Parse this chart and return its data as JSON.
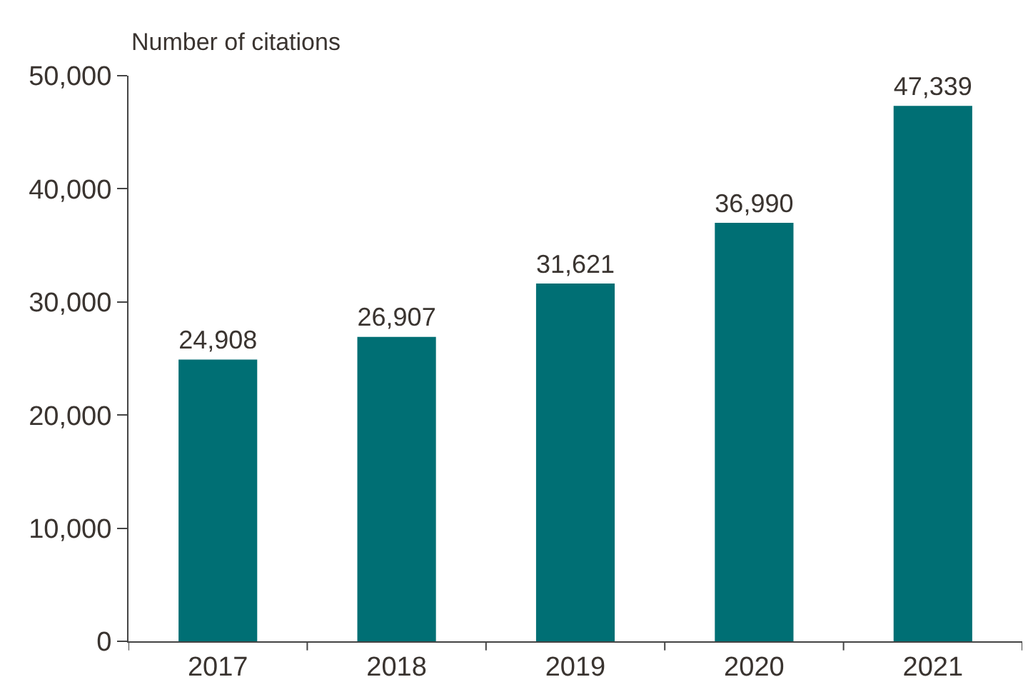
{
  "chart_data": {
    "type": "bar",
    "ylabel": "Number of citations",
    "categories": [
      "2017",
      "2018",
      "2019",
      "2020",
      "2021"
    ],
    "values": [
      24908,
      26907,
      31621,
      36990,
      47339
    ],
    "value_labels": [
      "24,908",
      "26,907",
      "31,621",
      "36,990",
      "47,339"
    ],
    "color": "#006f74",
    "ylim": [
      0,
      50000
    ],
    "yticks": [
      {
        "value": 0,
        "label": "0"
      },
      {
        "value": 10000,
        "label": "10,000"
      },
      {
        "value": 20000,
        "label": "20,000"
      },
      {
        "value": 30000,
        "label": "30,000"
      },
      {
        "value": 40000,
        "label": "40,000"
      },
      {
        "value": 50000,
        "label": "50,000"
      }
    ],
    "grid": false,
    "legend": false
  }
}
